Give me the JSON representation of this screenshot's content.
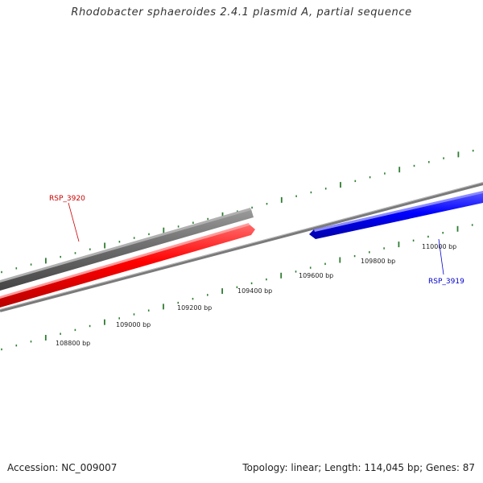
{
  "header": {
    "title": "Rhodobacter sphaeroides 2.4.1 plasmid A, partial sequence"
  },
  "footer": {
    "accession": "Accession: NC_009007",
    "summary": "Topology: linear; Length: 114,045 bp; Genes: 87"
  },
  "ruler": {
    "labels": [
      "108800 bp",
      "109000 bp",
      "109200 bp",
      "109400 bp",
      "109600 bp",
      "109800 bp",
      "110000 bp"
    ],
    "major_tick_color": "#2e7d32",
    "minor_tick_color": "#2e7d32"
  },
  "genes": [
    {
      "label": "RSP_3920",
      "color": "#cc0000",
      "strand": "forward"
    },
    {
      "label": "RSP_3919",
      "color": "#0000cc",
      "strand": "reverse"
    }
  ],
  "colors": {
    "gene_forward": "#ff0000",
    "gene_reverse": "#0000ff",
    "sequence_bar": "#666666",
    "backbone": "#888888"
  }
}
